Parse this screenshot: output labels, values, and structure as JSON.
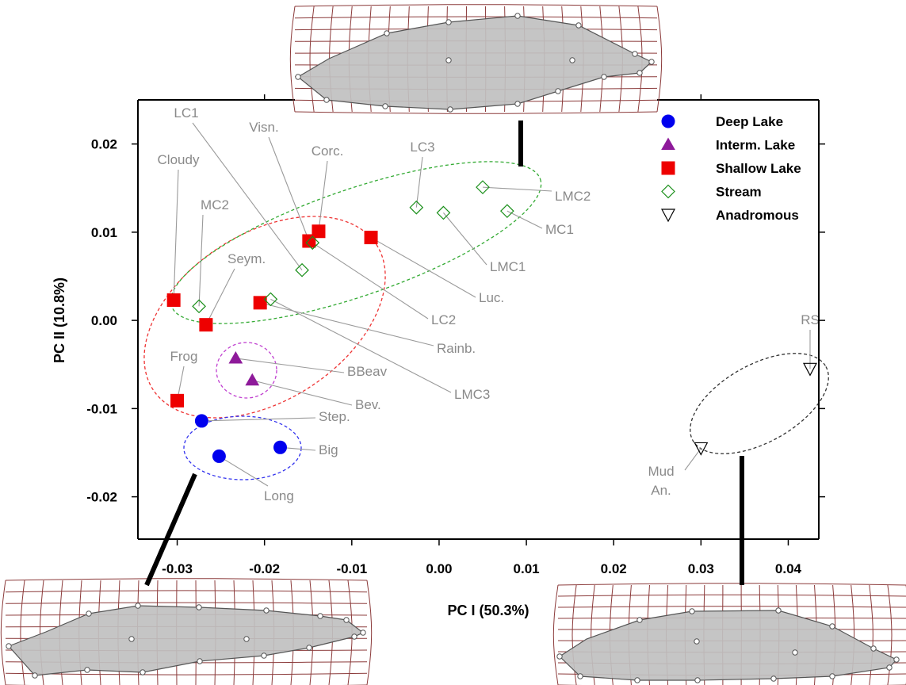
{
  "chart_data": {
    "type": "scatter",
    "xlabel": "PC I (50.3%)",
    "ylabel": "PC II (10.8%)",
    "xlim": [
      -0.0345,
      0.0435
    ],
    "ylim": [
      -0.0248,
      0.025
    ],
    "x_ticks": [
      -0.03,
      -0.02,
      -0.01,
      0.0,
      0.01,
      0.02,
      0.03,
      0.04
    ],
    "x_tick_labels": [
      "-0.03",
      "-0.02",
      "-0.01",
      "0.00",
      "0.01",
      "0.02",
      "0.03",
      "0.04"
    ],
    "y_ticks": [
      -0.02,
      -0.01,
      0.0,
      0.01,
      0.02
    ],
    "y_tick_labels": [
      "-0.02",
      "-0.01",
      "0.00",
      "0.01",
      "0.02"
    ],
    "grid": false,
    "legend_position": "top-right",
    "series": [
      {
        "name": "Deep Lake",
        "marker": "circle",
        "color": "#0000ee",
        "filled": true,
        "points": [
          {
            "label": "Step.",
            "x": -0.0272,
            "y": -0.0114
          },
          {
            "label": "Long",
            "x": -0.0252,
            "y": -0.0154
          },
          {
            "label": "Big",
            "x": -0.0182,
            "y": -0.0144
          }
        ]
      },
      {
        "name": "Interm. Lake",
        "marker": "triangle-up",
        "color": "#8e1a9a",
        "filled": true,
        "points": [
          {
            "label": "BBeav",
            "x": -0.0233,
            "y": -0.0043
          },
          {
            "label": "Bev.",
            "x": -0.0214,
            "y": -0.0068
          }
        ]
      },
      {
        "name": "Shallow Lake",
        "marker": "square",
        "color": "#ee0000",
        "filled": true,
        "points": [
          {
            "label": "Cloudy",
            "x": -0.0304,
            "y": 0.0023
          },
          {
            "label": "Seym.",
            "x": -0.0267,
            "y": -0.0005
          },
          {
            "label": "Frog",
            "x": -0.03,
            "y": -0.0091
          },
          {
            "label": "Rainb.",
            "x": -0.0205,
            "y": 0.002
          },
          {
            "label": "Visn.",
            "x": -0.0149,
            "y": 0.009
          },
          {
            "label": "Corc.",
            "x": -0.0138,
            "y": 0.0101
          },
          {
            "label": "Luc.",
            "x": -0.0078,
            "y": 0.0094
          }
        ]
      },
      {
        "name": "Stream",
        "marker": "diamond",
        "color": "#1a8f1a",
        "filled": false,
        "points": [
          {
            "label": "MC2",
            "x": -0.0275,
            "y": 0.0016
          },
          {
            "label": "LC1",
            "x": -0.0157,
            "y": 0.0057
          },
          {
            "label": "LC2",
            "x": -0.0145,
            "y": 0.0088
          },
          {
            "label": "LMC3",
            "x": -0.0193,
            "y": 0.0024
          },
          {
            "label": "LC3",
            "x": -0.0026,
            "y": 0.0128
          },
          {
            "label": "LMC1",
            "x": 0.0005,
            "y": 0.0122
          },
          {
            "label": "LMC2",
            "x": 0.005,
            "y": 0.0151
          },
          {
            "label": "MC1",
            "x": 0.0078,
            "y": 0.0124
          }
        ]
      },
      {
        "name": "Anadromous",
        "marker": "triangle-down",
        "color": "#000000",
        "filled": false,
        "points": [
          {
            "label": "RS",
            "x": 0.0425,
            "y": -0.0055
          },
          {
            "label": "Mud An.",
            "x": 0.03,
            "y": -0.0145
          }
        ]
      }
    ]
  },
  "colors": {
    "ellipse_shallow": "#ee3333",
    "ellipse_stream": "#33aa33",
    "ellipse_interm": "#c040d0",
    "ellipse_deep": "#3333ee",
    "ellipse_anadromous": "#333333",
    "grid_line": "#8b3a3a",
    "shape_fill": "#c0c0c0",
    "label_gray": "#8a8a8a"
  },
  "icons": [
    "deformation-grid-icon"
  ]
}
